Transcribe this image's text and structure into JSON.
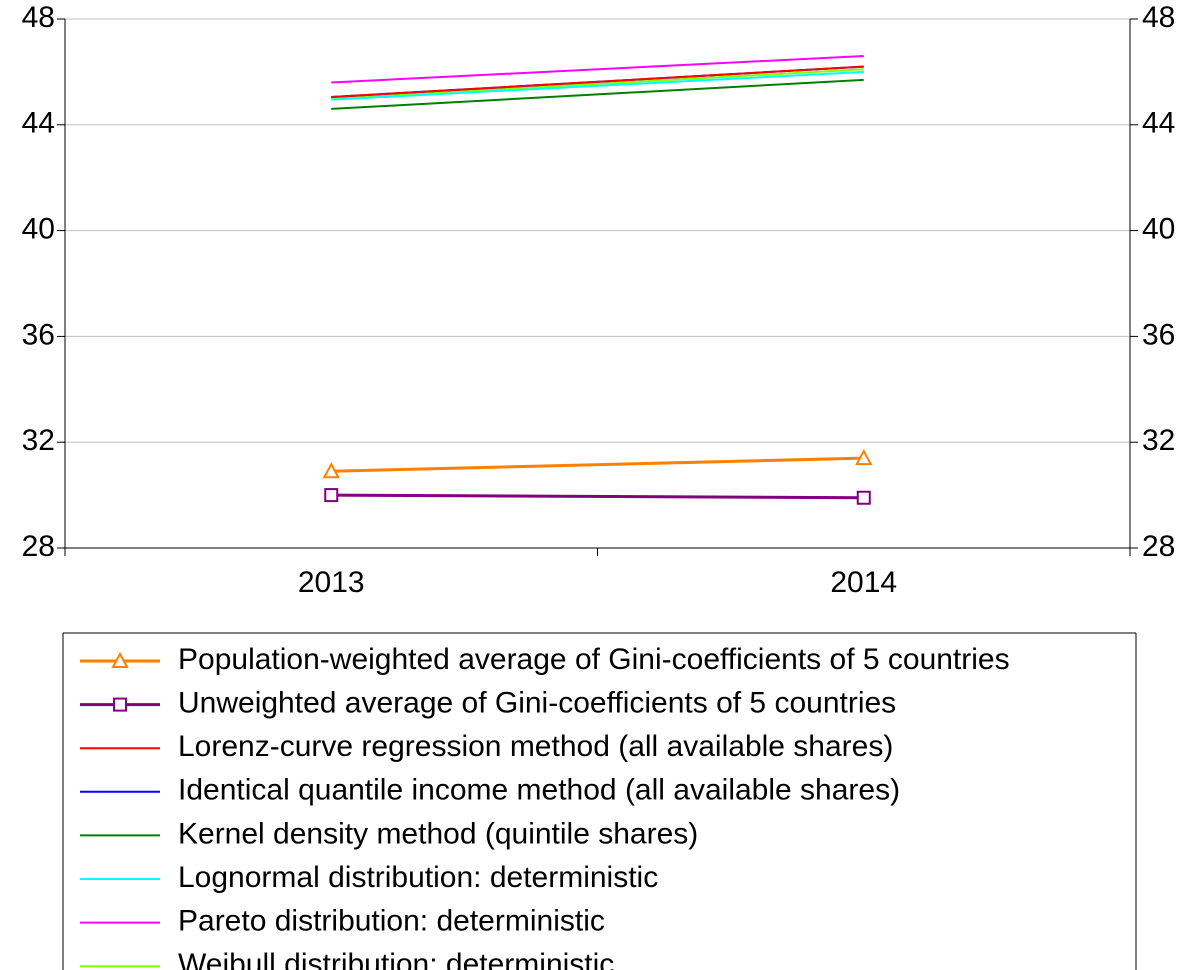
{
  "chart_data": {
    "type": "line",
    "categories": [
      "2013",
      "2014"
    ],
    "series": [
      {
        "name": "Population-weighted average of Gini-coefficients of 5 countries",
        "color": "#ff8000",
        "marker": "triangle",
        "values": [
          30.9,
          31.4
        ]
      },
      {
        "name": "Unweighted average of Gini-coefficients of 5 countries",
        "color": "#800080",
        "marker": "square",
        "values": [
          30.0,
          29.9
        ]
      },
      {
        "name": "Lorenz-curve regression method (all available shares)",
        "color": "#ff0000",
        "values": [
          45.05,
          46.2
        ]
      },
      {
        "name": "Identical quantile income method (all available shares)",
        "color": "#0000ff",
        "values": [
          45.05,
          46.2
        ]
      },
      {
        "name": "Kernel density method (quintile shares)",
        "color": "#008000",
        "values": [
          44.6,
          45.7
        ]
      },
      {
        "name": "Lognormal distribution: deterministic",
        "color": "#00ffff",
        "values": [
          44.95,
          46.0
        ]
      },
      {
        "name": "Pareto distribution: deterministic",
        "color": "#ff00ff",
        "values": [
          45.6,
          46.6
        ]
      },
      {
        "name": "Weibull distribution: deterministic",
        "color": "#80ff00",
        "values": [
          45.0,
          46.1
        ]
      }
    ],
    "ylim": [
      28,
      48
    ],
    "yticks": [
      28,
      32,
      36,
      40,
      44,
      48
    ],
    "y2lim": [
      28,
      48
    ],
    "y2ticks": [
      28,
      32,
      36,
      40,
      44,
      48
    ],
    "grid": true,
    "legend": "bottom"
  }
}
